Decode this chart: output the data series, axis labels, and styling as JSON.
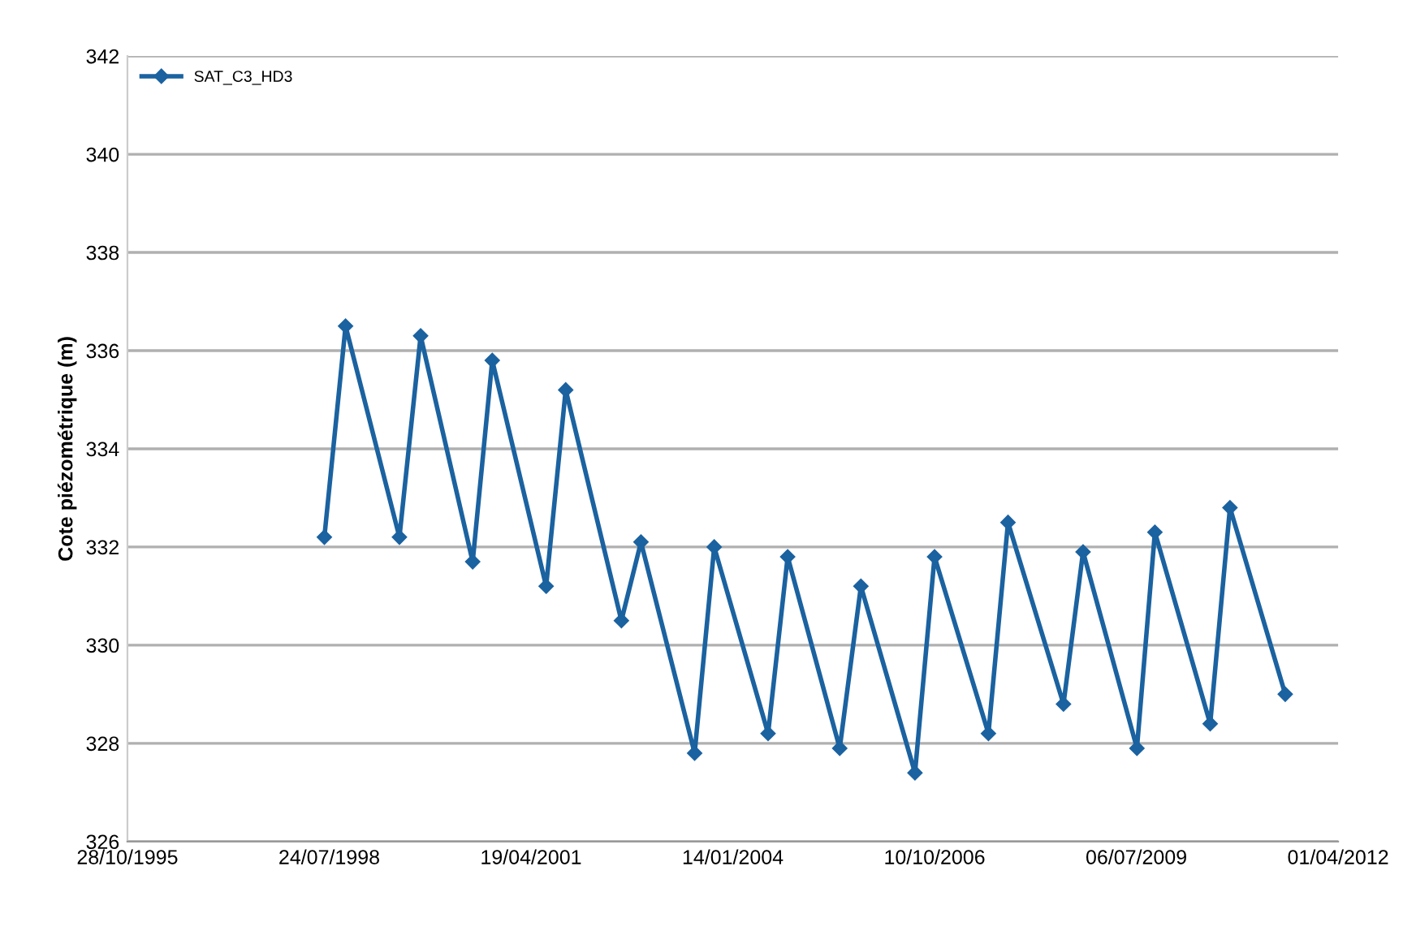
{
  "chart_data": {
    "type": "line",
    "ylabel": "Cote piézométrique (m)",
    "x": [
      "1998-06-30",
      "1998-10-13",
      "1999-07-07",
      "1999-10-20",
      "2000-07-04",
      "2000-10-09",
      "2001-07-03",
      "2001-10-08",
      "2002-07-11",
      "2002-10-16",
      "2003-07-09",
      "2003-10-14",
      "2004-07-07",
      "2004-10-12",
      "2005-06-27",
      "2005-10-10",
      "2006-07-05",
      "2006-10-10",
      "2007-07-04",
      "2007-10-09",
      "2008-07-10",
      "2008-10-15",
      "2009-07-09",
      "2009-10-06",
      "2010-07-07",
      "2010-10-13",
      "2011-07-14"
    ],
    "series": [
      {
        "name": "SAT_C3_HD3",
        "color": "#1b62a0",
        "values": [
          332.2,
          336.5,
          332.2,
          336.3,
          331.7,
          335.8,
          331.2,
          335.2,
          330.5,
          332.1,
          327.8,
          332.0,
          328.2,
          331.8,
          327.9,
          331.2,
          327.4,
          331.8,
          328.2,
          332.5,
          328.8,
          331.9,
          327.9,
          332.3,
          328.4,
          332.8,
          329.0
        ]
      }
    ],
    "xlim": [
      "1995-10-28",
      "2012-04-01"
    ],
    "xticks": [
      {
        "value": "1995-10-28",
        "label": "28/10/1995"
      },
      {
        "value": "1998-07-24",
        "label": "24/07/1998"
      },
      {
        "value": "2001-04-19",
        "label": "19/04/2001"
      },
      {
        "value": "2004-01-14",
        "label": "14/01/2004"
      },
      {
        "value": "2006-10-10",
        "label": "10/10/2006"
      },
      {
        "value": "2009-07-06",
        "label": "06/07/2009"
      },
      {
        "value": "2012-04-01",
        "label": "01/04/2012"
      }
    ],
    "ylim": [
      326,
      342
    ],
    "yticks": [
      326,
      328,
      330,
      332,
      334,
      336,
      338,
      340,
      342
    ],
    "grid": "y",
    "legend": "top left",
    "marker": "diamond",
    "line_style": "solid"
  }
}
